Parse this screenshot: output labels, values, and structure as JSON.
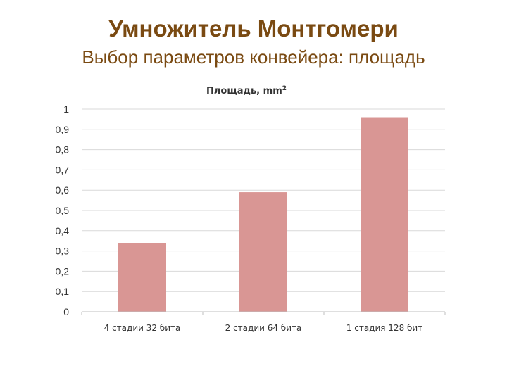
{
  "slide": {
    "title": "Умножитель Монтгомери",
    "subtitle": "Выбор параметров конвейера: площадь"
  },
  "colors": {
    "title": "#7a4a12",
    "bar": "#d99694"
  },
  "chart_data": {
    "type": "bar",
    "title": "Площадь, mm",
    "title_superscript": "2",
    "categories": [
      "4 стадии 32 бита",
      "2 стадии 64 бита",
      "1 стадия 128 бит"
    ],
    "values": [
      0.34,
      0.59,
      0.96
    ],
    "ylim": [
      0,
      1
    ],
    "yticks": [
      "0",
      "0,1",
      "0,2",
      "0,3",
      "0,4",
      "0,5",
      "0,6",
      "0,7",
      "0,8",
      "0,9",
      "1"
    ],
    "grid": true,
    "legend": "none"
  }
}
